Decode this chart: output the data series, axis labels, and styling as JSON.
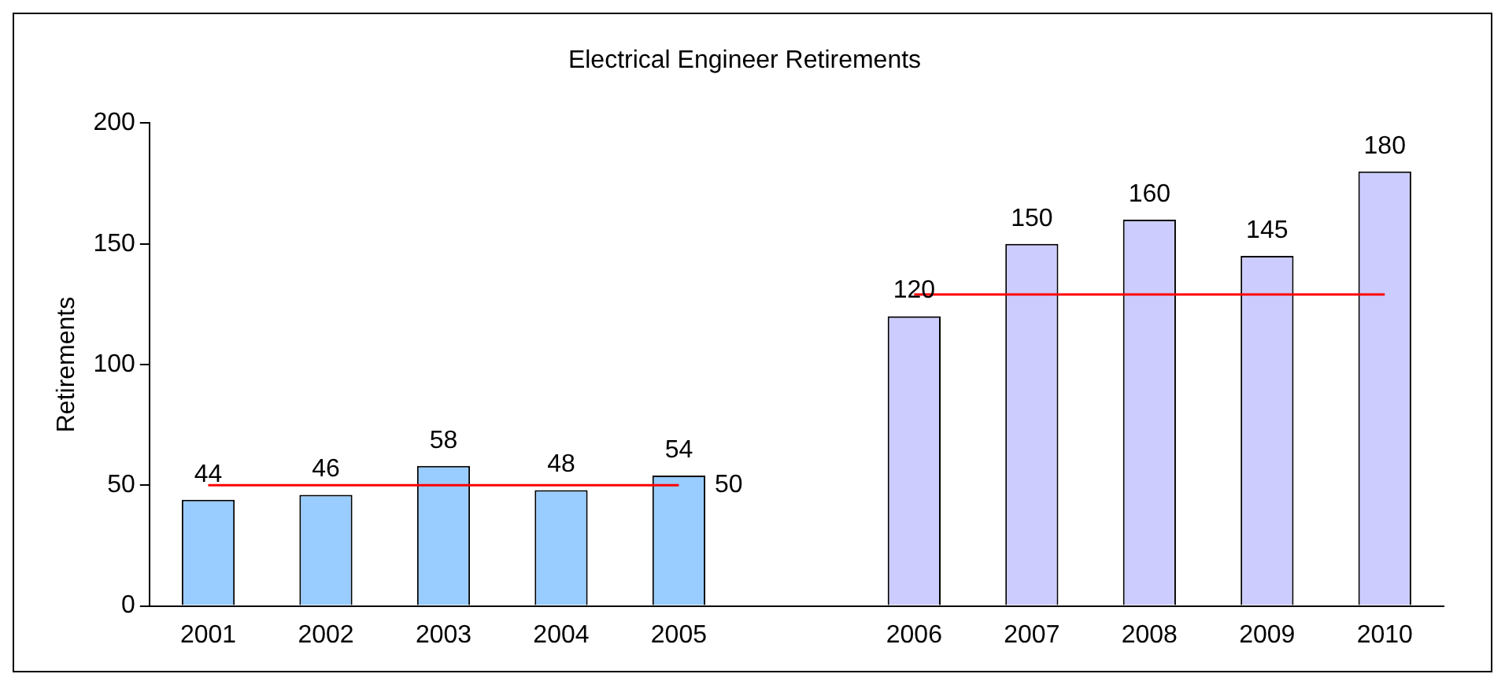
{
  "chart_data": {
    "type": "bar",
    "title": "Electrical Engineer Retirements",
    "ylabel": "Retirements",
    "categories": [
      "2001",
      "2002",
      "2003",
      "2004",
      "2005",
      null,
      "2006",
      "2007",
      "2008",
      "2009",
      "2010"
    ],
    "series": [
      {
        "colors": [
          "#99ccff",
          "#99ccff",
          "#99ccff",
          "#99ccff",
          "#99ccff",
          null,
          "#ccccff",
          "#ccccff",
          "#ccccff",
          "#ccccff",
          "#ccccff"
        ],
        "values": [
          44,
          46,
          58,
          48,
          54,
          null,
          120,
          150,
          160,
          145,
          180
        ],
        "value_labels": [
          "44",
          "46",
          "58",
          "48",
          "54",
          null,
          "120",
          "150",
          "160",
          "145",
          "180"
        ]
      },
      {
        "type": "line",
        "color": "#ff0000",
        "values": [
          50,
          50,
          50,
          50,
          50,
          null,
          null,
          null,
          null,
          null,
          null
        ],
        "value_labels": [
          null,
          null,
          null,
          null,
          "50",
          null,
          null,
          null,
          null,
          null,
          null
        ]
      },
      {
        "type": "line",
        "color": "#ff0000",
        "values": [
          null,
          null,
          null,
          null,
          null,
          null,
          129,
          129,
          129,
          129,
          129
        ]
      }
    ],
    "ylim": [
      0,
      200
    ],
    "yticks": [
      0,
      50,
      100,
      150,
      200
    ],
    "grid": false,
    "legend": false,
    "marker": "none"
  }
}
